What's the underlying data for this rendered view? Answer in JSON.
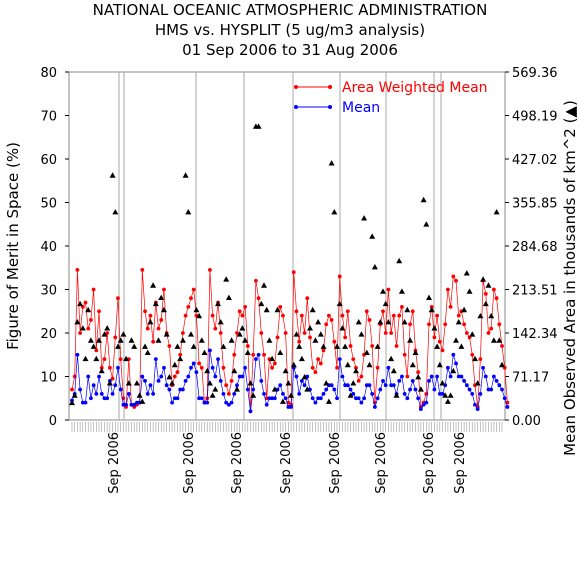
{
  "chart_data": {
    "type": "line",
    "title_lines": [
      "NATIONAL OCEANIC ATMOSPHERIC ADMINISTRATION",
      "HMS vs. HYSPLIT (5 ug/m3 analysis)",
      "01 Sep 2006 to 31 Aug 2006"
    ],
    "ylabel_left": "Figure of Merit in Space (%)",
    "ylabel_right": "Mean Observed Area in thousands of km^2 (▲)",
    "ylim_left": [
      0,
      80
    ],
    "yticks_left": [
      "0",
      "10",
      "20",
      "30",
      "40",
      "50",
      "60",
      "70",
      "80"
    ],
    "yticks_right": [
      "0.00",
      "71.17",
      "142.34",
      "213.51",
      "284.68",
      "355.85",
      "427.02",
      "498.19",
      "569.36"
    ],
    "ylim_right": [
      0,
      569.36
    ],
    "x_tick_labels": [
      "Sep 2006",
      "Sep 2006",
      "Sep 2006",
      "Sep 2006",
      "Sep 2006",
      "Sep 2006",
      "Sep 2006",
      "Sep 2006"
    ],
    "n_points": 160,
    "grid": false,
    "legend_position": "top-right",
    "series": [
      {
        "name": "Area Weighted Mean",
        "color": "#ff0000",
        "marker": "circle",
        "values": [
          7,
          10,
          34.5,
          20,
          26,
          27,
          21,
          23,
          30,
          16,
          25,
          12,
          14,
          20,
          12,
          9.5,
          19,
          28,
          14,
          5,
          3,
          14,
          3.5,
          3,
          3.5,
          4,
          34.5,
          25,
          21,
          24,
          18,
          27,
          21,
          23,
          30,
          20,
          17,
          8,
          10,
          11,
          15,
          20,
          24,
          26,
          28,
          30,
          24,
          13,
          12,
          4,
          5,
          34.5,
          24,
          21,
          27,
          20,
          12,
          8,
          6,
          9,
          15,
          20,
          25,
          24,
          26,
          17,
          2,
          15,
          32,
          28,
          20,
          15,
          5,
          14,
          12,
          13,
          19,
          26,
          24,
          20,
          4,
          3.5,
          34,
          25,
          18,
          24,
          20,
          28,
          19,
          12,
          11,
          14,
          13,
          16,
          22,
          24,
          23,
          18,
          12,
          33,
          24,
          19,
          25,
          17,
          14,
          12,
          9,
          10,
          15,
          25,
          23,
          17,
          4,
          12,
          22,
          25,
          20,
          30,
          20,
          24,
          17,
          24,
          26,
          15,
          10,
          22,
          25,
          16,
          11,
          3,
          4,
          6,
          22,
          26,
          19,
          24,
          18,
          16,
          22,
          30,
          26,
          33,
          32,
          24,
          25,
          22,
          20,
          19,
          15,
          8,
          3,
          14,
          32,
          29,
          20,
          21,
          30,
          28,
          22,
          17,
          12,
          4
        ]
      },
      {
        "name": "Mean",
        "color": "#0000ff",
        "marker": "circle",
        "values": [
          4.5,
          6,
          15,
          7,
          4,
          4,
          10,
          5,
          8,
          6,
          10,
          6,
          5,
          5,
          9,
          6,
          8,
          12,
          7,
          3.5,
          3.5,
          6,
          3.5,
          3.5,
          4,
          4,
          10,
          9,
          6,
          8,
          6,
          14,
          9,
          10,
          12,
          8,
          7,
          4,
          5,
          5,
          7,
          7,
          9,
          10,
          12,
          13,
          11,
          5,
          5,
          4,
          4,
          16,
          12,
          10,
          14,
          9,
          6,
          4,
          3.5,
          4,
          6,
          8,
          10,
          10,
          12,
          7,
          2,
          7,
          14,
          15,
          9,
          6,
          3.5,
          5,
          5,
          5,
          7,
          8,
          6,
          5,
          3,
          3,
          12,
          10,
          6,
          9,
          8,
          10,
          7,
          5,
          4,
          5,
          5,
          6,
          7,
          8,
          8,
          7,
          5,
          14,
          10,
          8,
          8,
          7,
          6,
          5,
          5,
          4,
          5,
          8,
          8,
          6,
          3,
          5,
          7,
          9,
          8,
          12,
          8,
          8,
          6,
          9,
          10,
          6,
          5,
          7,
          9,
          7,
          5,
          2.5,
          3.5,
          4,
          9,
          10,
          7,
          10,
          6,
          6,
          8,
          12,
          10,
          15,
          13,
          10,
          10,
          9,
          8,
          7,
          6,
          3.5,
          2.5,
          6,
          12,
          10,
          7,
          7,
          10,
          9,
          8,
          7,
          5,
          3
        ]
      },
      {
        "name": "Mean Observed Area",
        "color": "#000000",
        "marker": "triangle",
        "axis": "right",
        "values": [
          28,
          40,
          160,
          190,
          150,
          100,
          180,
          130,
          120,
          100,
          130,
          80,
          140,
          150,
          60,
          400,
          340,
          120,
          130,
          140,
          100,
          60,
          130,
          120,
          60,
          40,
          30,
          120,
          110,
          160,
          220,
          190,
          130,
          200,
          180,
          140,
          70,
          60,
          90,
          120,
          100,
          130,
          400,
          340,
          140,
          120,
          180,
          170,
          130,
          110,
          80,
          60,
          40,
          50,
          190,
          160,
          120,
          230,
          200,
          130,
          80,
          50,
          140,
          150,
          130,
          110,
          60,
          40,
          480,
          480,
          190,
          220,
          180,
          130,
          100,
          50,
          180,
          110,
          30,
          80,
          60,
          40,
          90,
          140,
          120,
          100,
          70,
          50,
          150,
          180,
          130,
          160,
          140,
          120,
          60,
          30,
          420,
          340,
          120,
          190,
          150,
          120,
          90,
          40,
          60,
          80,
          160,
          140,
          330,
          110,
          90,
          300,
          250,
          120,
          160,
          210,
          190,
          160,
          100,
          80,
          40,
          260,
          210,
          160,
          180,
          130,
          90,
          110,
          70,
          50,
          360,
          320,
          200,
          180,
          150,
          120,
          90,
          60,
          40,
          30,
          40,
          80,
          130,
          160,
          120,
          180,
          240,
          210,
          140,
          100,
          60,
          170,
          230,
          190,
          220,
          170,
          130,
          340,
          130,
          90
        ]
      }
    ]
  }
}
